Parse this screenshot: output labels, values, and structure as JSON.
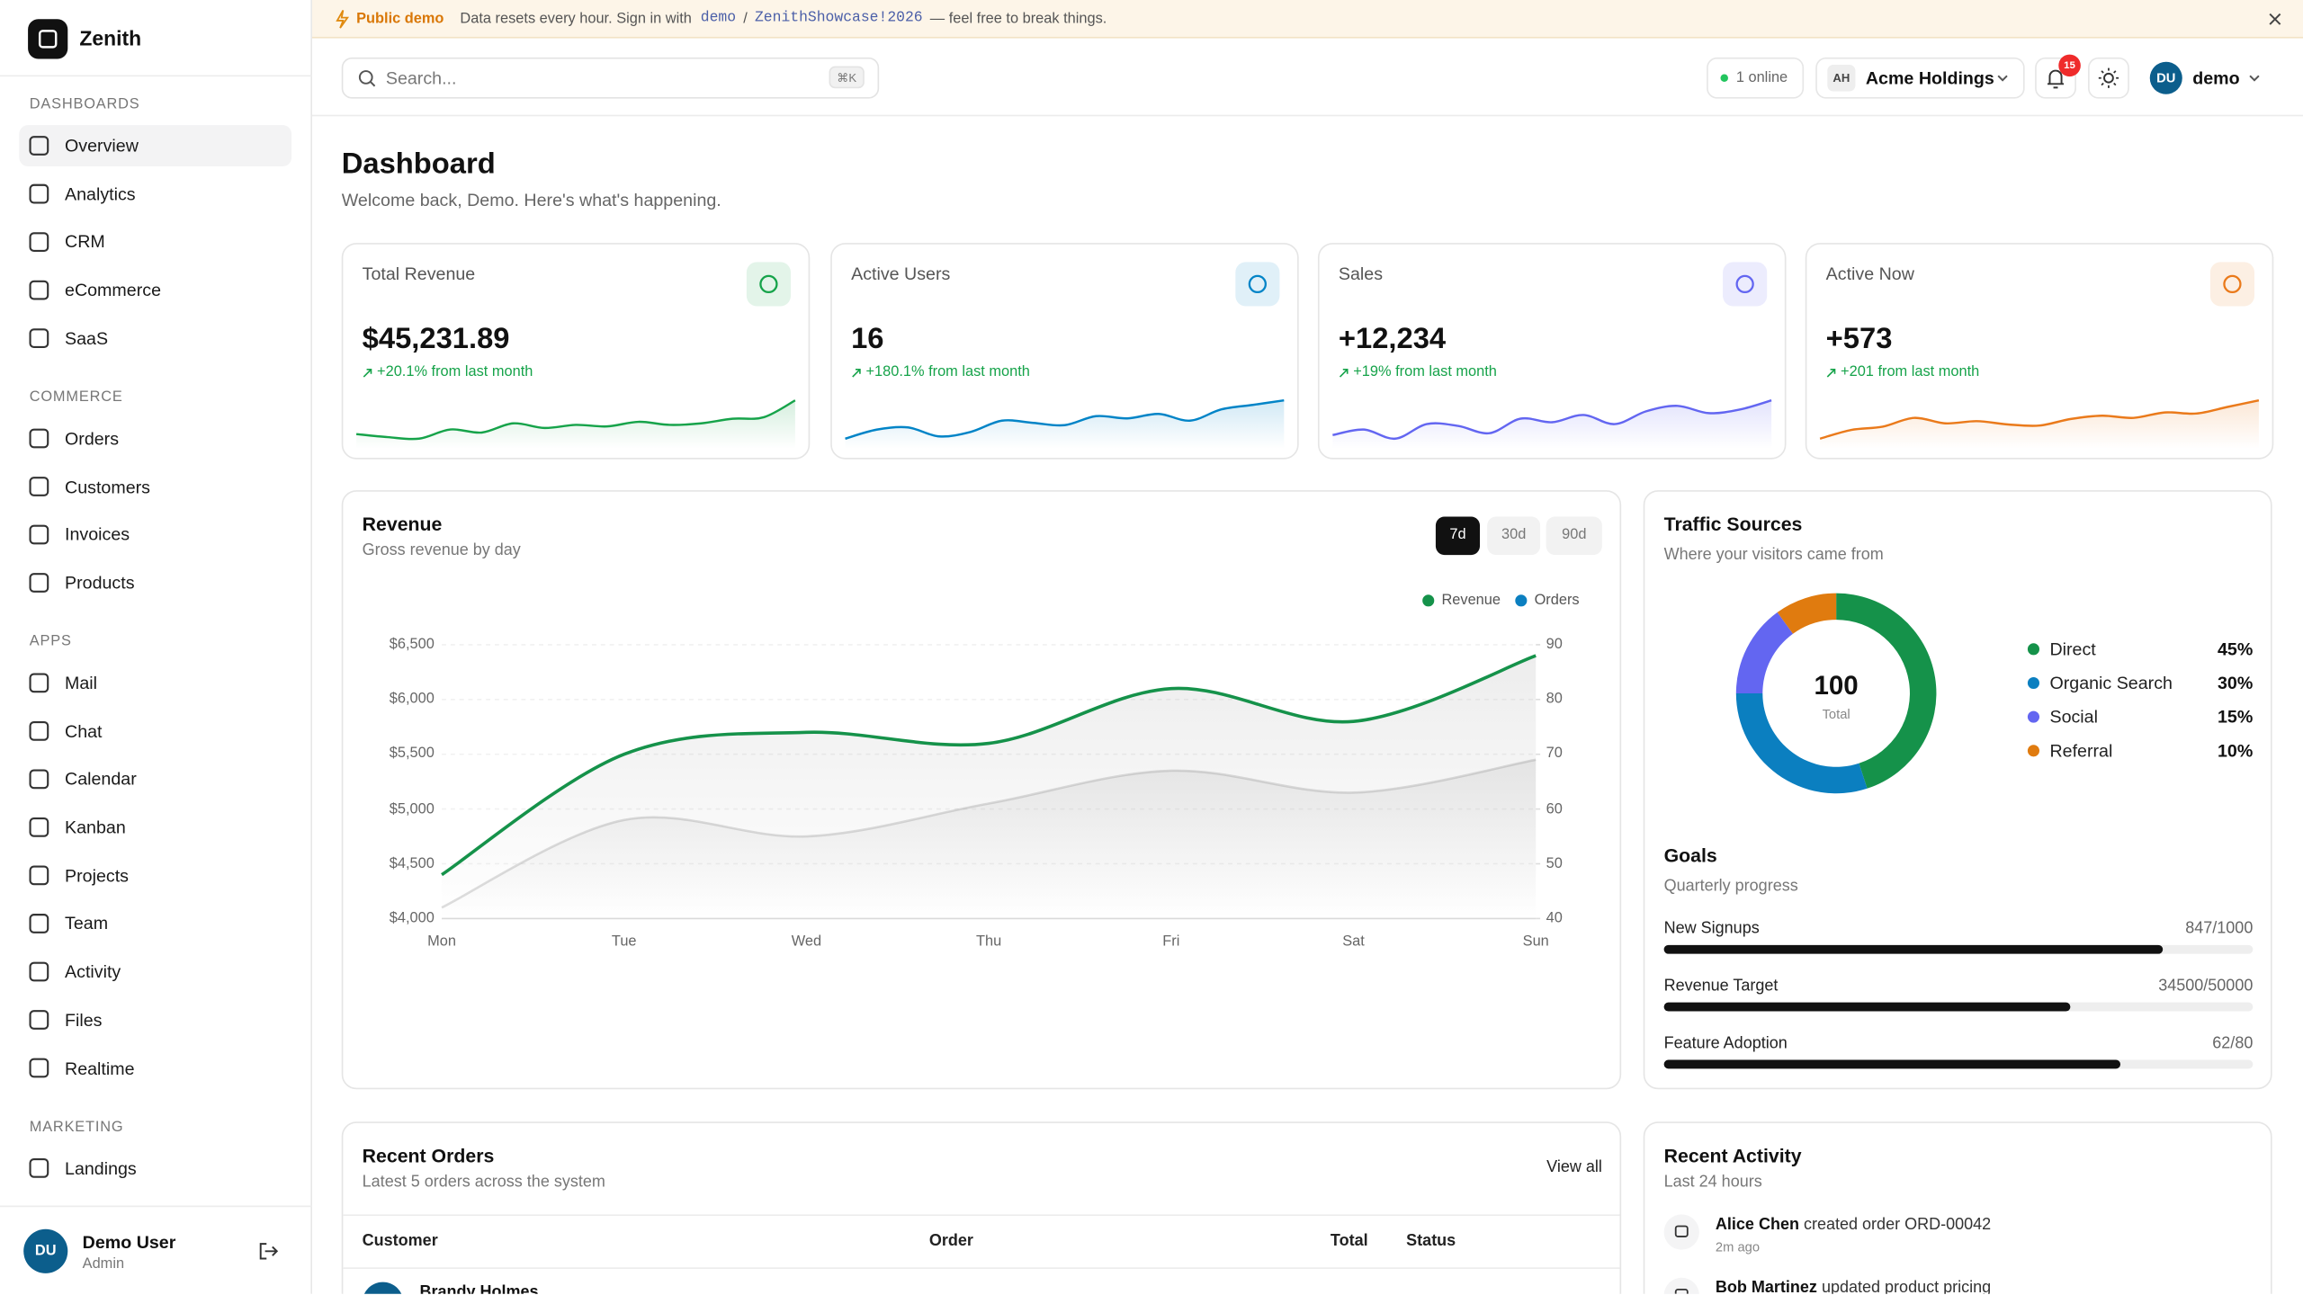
{
  "banner": {
    "tag": "Public demo",
    "text": "Data resets every hour. Sign in with",
    "user": "demo",
    "separator": "/",
    "password": "ZenithShowcase!2026",
    "note": "— feel free to break things."
  },
  "sidebar": {
    "brand": "Zenith",
    "sections": [
      {
        "title": "DASHBOARDS",
        "items": [
          "Overview",
          "Analytics",
          "CRM",
          "eCommerce",
          "SaaS"
        ]
      },
      {
        "title": "COMMERCE",
        "items": [
          "Orders",
          "Customers",
          "Invoices",
          "Products"
        ]
      },
      {
        "title": "APPS",
        "items": [
          "Mail",
          "Chat",
          "Calendar",
          "Kanban",
          "Projects",
          "Team",
          "Activity",
          "Files",
          "Realtime"
        ]
      },
      {
        "title": "MARKETING",
        "items": [
          "Landings"
        ]
      }
    ],
    "user": {
      "initials": "DU",
      "name": "Demo User",
      "role": "Admin"
    }
  },
  "header": {
    "search": "Search...",
    "shortcut": "⌘K",
    "online": "1 online",
    "org_initials": "AH",
    "org": "Acme Holdings",
    "notifications": 15,
    "user_initials": "DU",
    "user": "demo"
  },
  "page": {
    "title": "Dashboard",
    "subtitle": "Welcome back, Demo. Here's what's happening."
  },
  "stats": [
    {
      "label": "Total Revenue",
      "value": "$45,231.89",
      "change": "+20.1% from last month",
      "trend": {
        "color": "#16a34a",
        "values": [
          2.2,
          2.0,
          1.9,
          2.5,
          2.3,
          2.9,
          2.6,
          2.8,
          2.7,
          3.0,
          2.8,
          2.9,
          3.2,
          3.3,
          4.4
        ]
      }
    },
    {
      "label": "Active Users",
      "value": "16",
      "change": "+180.1% from last month",
      "trend": {
        "color": "#0284c7",
        "values": [
          1.5,
          1.9,
          2.0,
          1.6,
          1.8,
          2.3,
          2.2,
          2.1,
          2.5,
          2.4,
          2.6,
          2.3,
          2.8,
          3.0,
          3.2
        ]
      }
    },
    {
      "label": "Sales",
      "value": "+12,234",
      "change": "+19% from last month",
      "trend": {
        "color": "#6366f1",
        "values": [
          2.0,
          2.3,
          1.8,
          2.6,
          2.5,
          2.1,
          2.9,
          2.7,
          3.1,
          2.6,
          3.3,
          3.6,
          3.2,
          3.4,
          3.9
        ]
      }
    },
    {
      "label": "Active Now",
      "value": "+573",
      "change": "+201 from last month",
      "trend": {
        "color": "#ea7a1b",
        "values": [
          1.0,
          1.8,
          2.1,
          2.9,
          2.4,
          2.6,
          2.3,
          2.2,
          2.8,
          3.1,
          2.9,
          3.4,
          3.3,
          3.9,
          4.5
        ]
      }
    }
  ],
  "chart_data": [
    {
      "type": "line",
      "title": "Revenue",
      "subtitle": "Gross revenue by day",
      "ranges": [
        "7d",
        "30d",
        "90d"
      ],
      "categories": [
        "Mon",
        "Tue",
        "Wed",
        "Thu",
        "Fri",
        "Sat",
        "Sun"
      ],
      "series": [
        {
          "name": "Revenue",
          "color": "#15924a",
          "values": [
            4400,
            5500,
            5700,
            5600,
            6100,
            5800,
            6400
          ]
        },
        {
          "name": "Orders",
          "color": "#0b7fc0",
          "axis": "y2",
          "values": [
            42,
            58,
            55,
            61,
            67,
            63,
            69
          ]
        }
      ],
      "ylim": [
        4000,
        6500
      ],
      "yticks": [
        {
          "value": 4000,
          "label": "$4,000"
        },
        {
          "value": 4500,
          "label": "$4,500"
        },
        {
          "value": 5000,
          "label": "$5,000"
        },
        {
          "value": 5500,
          "label": "$5,500"
        },
        {
          "value": 6000,
          "label": "$6,000"
        },
        {
          "value": 6500,
          "label": "$6,500"
        }
      ],
      "y2lim": [
        40,
        90
      ],
      "y2ticks": [
        40,
        50,
        60,
        70,
        80,
        90
      ],
      "grid": true
    },
    {
      "type": "pie",
      "title": "Traffic Sources",
      "subtitle": "Where your visitors came from",
      "center_value": 100,
      "center_label": "Total",
      "categories": [
        "Direct",
        "Organic Search",
        "Social",
        "Referral"
      ],
      "values": [
        45,
        30,
        15,
        10
      ],
      "value_labels": [
        "45%",
        "30%",
        "15%",
        "10%"
      ],
      "colors": [
        "#15924a",
        "#0b7fc0",
        "#6366f1",
        "#e07b0f"
      ]
    }
  ],
  "goals": {
    "title": "Goals",
    "subtitle": "Quarterly progress",
    "items": [
      {
        "name": "New Signups",
        "value": 847,
        "max": 1000,
        "value_label": "847/1000"
      },
      {
        "name": "Revenue Target",
        "value": 34500,
        "max": 50000,
        "value_label": "34500/50000"
      },
      {
        "name": "Feature Adoption",
        "value": 62,
        "max": 80,
        "value_label": "62/80"
      }
    ]
  },
  "orders": {
    "title": "Recent Orders",
    "subtitle": "Latest 5 orders across the system",
    "action": "View all",
    "columns": [
      "Customer",
      "Order",
      "Total",
      "Status"
    ],
    "rows": [
      [
        "Brandy Holmes"
      ]
    ]
  },
  "activity": {
    "title": "Recent Activity",
    "subtitle": "Last 24 hours",
    "items": [
      {
        "actor": "Alice Chen",
        "action": "created order ORD-00042",
        "time": "2m ago"
      },
      {
        "actor": "Bob Martinez",
        "action": "updated product pricing"
      }
    ]
  }
}
